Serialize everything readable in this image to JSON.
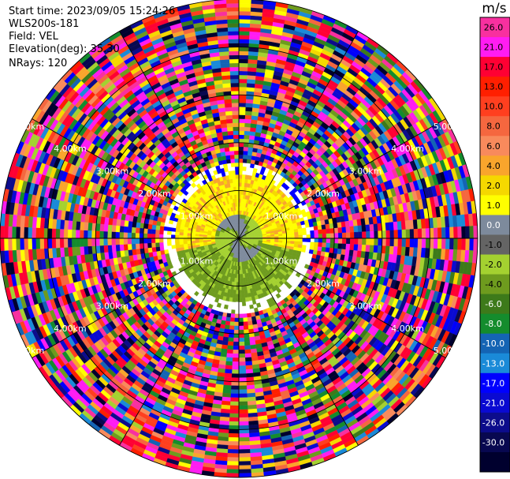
{
  "header": {
    "start_time": "Start time: 2023/09/05 15:24:26",
    "instrument": "WLS200s-181",
    "field": "Field: VEL",
    "elevation": "Elevation(deg): 35.30",
    "nrays": "NRays: 120"
  },
  "colorbar": {
    "unit": "m/s",
    "ticks": [
      "26.0",
      "21.0",
      "17.0",
      "13.0",
      "10.0",
      "8.0",
      "6.0",
      "4.0",
      "2.0",
      "1.0",
      "0.0",
      "-1.0",
      "-2.0",
      "-4.0",
      "-6.0",
      "-8.0",
      "-10.0",
      "-13.0",
      "-17.0",
      "-21.0",
      "-26.0",
      "-30.0"
    ],
    "colors": [
      "#f8309f",
      "#ff1cf2",
      "#ff0033",
      "#ff1f00",
      "#ff3f1f",
      "#f5673f",
      "#f88a5c",
      "#f9a52c",
      "#f5d800",
      "#ffff00",
      "#7d8a9c",
      "#646464",
      "#a4d130",
      "#6e9b1e",
      "#3d7a1a",
      "#148c2d",
      "#1464b4",
      "#1a8ad8",
      "#0000ff",
      "#0a0ad2",
      "#0c0c8c",
      "#080850",
      "#00002e"
    ]
  },
  "chart_data": {
    "type": "ppi",
    "field": "VEL",
    "units": "m/s",
    "nrays": 120,
    "elevation_deg": 35.3,
    "range_rings": [
      "1.00km",
      "2.00km",
      "3.00km",
      "4.00km",
      "5.00km"
    ],
    "range_rings_km": [
      1,
      2,
      3,
      4,
      5
    ],
    "max_range_km": 5.0,
    "colorbar_bounds": [
      -30,
      -26,
      -21,
      -17,
      -13,
      -10,
      -8,
      -6,
      -4,
      -2,
      -1,
      0,
      1,
      2,
      4,
      6,
      8,
      10,
      13,
      17,
      21,
      26
    ],
    "description_levels": {
      "inner_km": 0.5,
      "yellow_band_km": [
        0.5,
        1.3
      ],
      "noise_beyond_km": 1.6
    }
  }
}
